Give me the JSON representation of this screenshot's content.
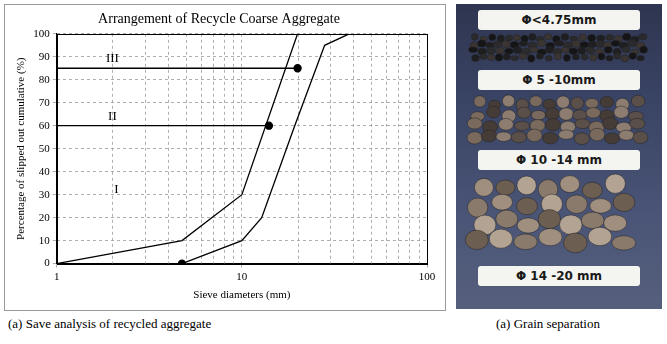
{
  "chart_data": {
    "type": "line",
    "title": "Arrangement of Recycle Coarse Aggregate",
    "x_label": "Sieve diameters (mm)",
    "y_label": "Percentage of slipped out cumulative (%)",
    "log": "x",
    "grid": true,
    "xlim": [
      1,
      100
    ],
    "xticks": [
      1,
      10,
      100
    ],
    "ylim": [
      0,
      100
    ],
    "yticks": [
      0,
      10,
      20,
      30,
      40,
      50,
      60,
      70,
      80,
      90,
      100
    ],
    "series": [
      {
        "x": [
          1,
          4.75,
          10,
          20
        ],
        "values": [
          0,
          10,
          30,
          100
        ],
        "color": "#000000",
        "marker": "none",
        "line_style": "solid"
      },
      {
        "x": [
          4.75,
          10,
          12.8,
          19.3,
          28,
          38
        ],
        "values": [
          0,
          10,
          20,
          60,
          95,
          100
        ],
        "color": "#000000",
        "marker": "none",
        "line_style": "solid"
      },
      {
        "x": [
          1,
          20
        ],
        "values": [
          85,
          85
        ],
        "color": "#000000",
        "marker": "none",
        "line_style": "solid"
      },
      {
        "x": [
          1,
          14
        ],
        "values": [
          60,
          60
        ],
        "color": "#000000",
        "marker": "none",
        "line_style": "solid"
      },
      {
        "x": [
          4.75,
          14,
          20
        ],
        "values": [
          0,
          60,
          85
        ],
        "color": "#000000",
        "marker": "circle",
        "line_style": "none"
      }
    ],
    "annotations": [
      {
        "text": "III",
        "x": 2,
        "y": 89
      },
      {
        "text": "II",
        "x": 2,
        "y": 64
      },
      {
        "text": "I",
        "x": 2.1,
        "y": 32
      }
    ]
  },
  "chart_caption": "(a) Save analysis of recycled aggregate",
  "photo": {
    "labels": [
      "Φ<4.75mm",
      "Φ 5 -10mm",
      "Φ 10 -14 mm",
      "Φ 14 -20 mm"
    ],
    "caption": "(a) Grain separation"
  }
}
